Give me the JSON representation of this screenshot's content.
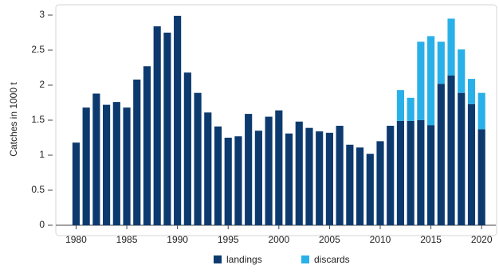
{
  "chart_data": {
    "type": "stacked_bar",
    "ylabel": "Catches in 1000 t",
    "x": [
      1980,
      1981,
      1982,
      1983,
      1984,
      1985,
      1986,
      1987,
      1988,
      1989,
      1990,
      1991,
      1992,
      1993,
      1994,
      1995,
      1996,
      1997,
      1998,
      1999,
      2000,
      2001,
      2002,
      2003,
      2004,
      2005,
      2006,
      2007,
      2008,
      2009,
      2010,
      2011,
      2012,
      2013,
      2014,
      2015,
      2016,
      2017,
      2018,
      2019,
      2020
    ],
    "series": [
      {
        "name": "landings",
        "color": "#0d3a6e",
        "values": [
          1.18,
          1.68,
          1.88,
          1.72,
          1.76,
          1.68,
          2.08,
          2.27,
          2.84,
          2.75,
          2.99,
          2.18,
          1.89,
          1.61,
          1.41,
          1.25,
          1.27,
          1.59,
          1.35,
          1.55,
          1.64,
          1.31,
          1.48,
          1.39,
          1.34,
          1.32,
          1.42,
          1.15,
          1.11,
          1.02,
          1.2,
          1.42,
          1.49,
          1.49,
          1.5,
          1.43,
          2.02,
          2.14,
          1.89,
          1.73,
          1.37
        ]
      },
      {
        "name": "discards",
        "color": "#2ab0e8",
        "values": [
          null,
          null,
          null,
          null,
          null,
          null,
          null,
          null,
          null,
          null,
          null,
          null,
          null,
          null,
          null,
          null,
          null,
          null,
          null,
          null,
          null,
          null,
          null,
          null,
          null,
          null,
          null,
          null,
          null,
          null,
          null,
          null,
          0.44,
          0.33,
          1.12,
          1.27,
          0.6,
          0.81,
          0.62,
          0.36,
          0.52
        ]
      }
    ],
    "xlim": [
      1978,
      2021.4
    ],
    "xticks": [
      1980,
      1985,
      1990,
      1995,
      2000,
      2005,
      2010,
      2015,
      2020
    ],
    "ylim": [
      0,
      3
    ],
    "yticks": [
      0,
      0.5,
      1,
      1.5,
      2,
      2.5,
      3
    ],
    "legend": "bottom"
  }
}
